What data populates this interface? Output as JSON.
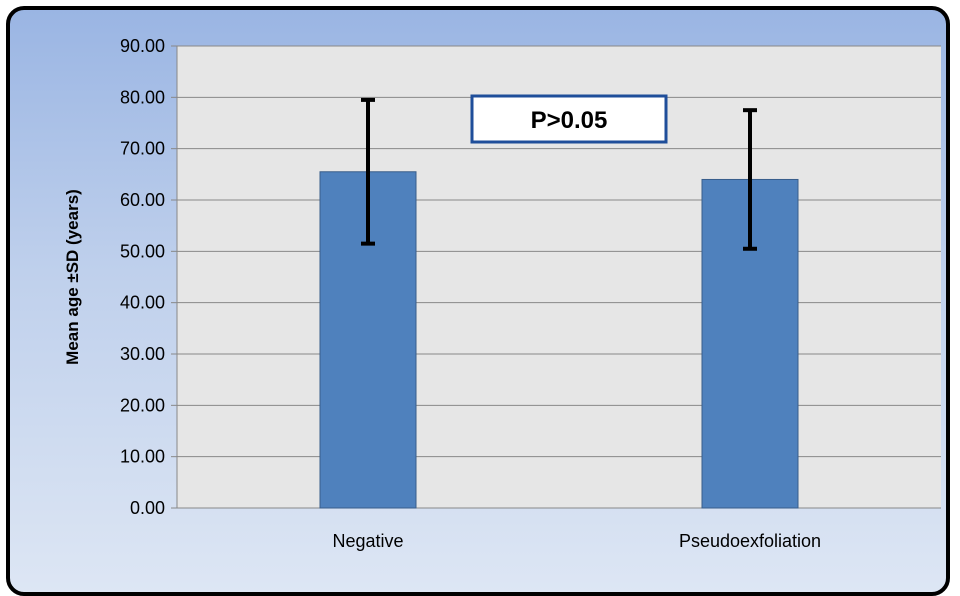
{
  "chart_data": {
    "type": "bar",
    "categories": [
      "Negative",
      "Pseudoexfoliation"
    ],
    "values": [
      65.5,
      64.0
    ],
    "error_bars": [
      {
        "low": 51.5,
        "high": 79.5
      },
      {
        "low": 50.5,
        "high": 77.5
      }
    ],
    "title": "",
    "xlabel": "",
    "ylabel": "Mean age ±SD (years)",
    "ylim": [
      0,
      90
    ],
    "yticks": [
      "0.00",
      "10.00",
      "20.00",
      "30.00",
      "40.00",
      "50.00",
      "60.00",
      "70.00",
      "80.00",
      "90.00"
    ],
    "grid": true,
    "annotation": "P>0.05",
    "colors": {
      "bar": "#4f81bd",
      "bar_edge": "#385d8a",
      "plot_bg": "#e6e6e6",
      "grid": "#888888",
      "error_bar": "#000000",
      "annotation_border": "#1f4e9a"
    }
  }
}
